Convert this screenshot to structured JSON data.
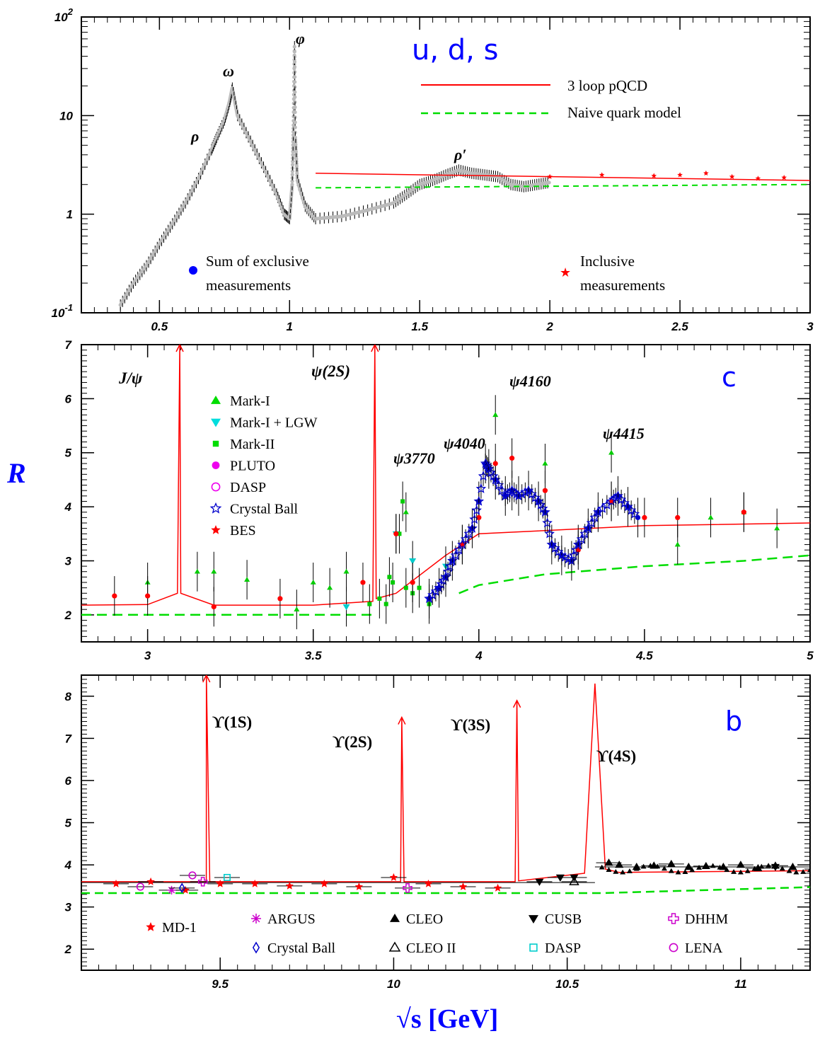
{
  "chart_data": [
    {
      "type": "scatter",
      "panel": "top",
      "yscale": "log",
      "xlim": [
        0.2,
        3.0
      ],
      "ylim": [
        0.1,
        100
      ],
      "xticks": [
        "0.5",
        "1",
        "1.5",
        "2",
        "2.5",
        "3"
      ],
      "yticks": [
        {
          "base": "10",
          "exp": "-1"
        },
        {
          "base": "1",
          "exp": ""
        },
        {
          "base": "10",
          "exp": ""
        },
        {
          "base": "10",
          "exp": "2"
        }
      ],
      "panel_label": "u, d, s",
      "resonances": [
        "ρ",
        "ω",
        "φ",
        "ρ′"
      ],
      "legend": {
        "pqcd": "3 loop pQCD",
        "naive": "Naive quark model",
        "exclusive": [
          "Sum of exclusive",
          "measurements"
        ],
        "inclusive": [
          "Inclusive",
          "measurements"
        ]
      },
      "series": [
        {
          "name": "Sum of exclusive measurements",
          "color": "#bbbbbb",
          "x": [
            0.35,
            0.4,
            0.45,
            0.5,
            0.55,
            0.6,
            0.65,
            0.7,
            0.72,
            0.75,
            0.77,
            0.78,
            0.8,
            0.85,
            0.9,
            0.95,
            0.98,
            1.0,
            1.01,
            1.015,
            1.019,
            1.022,
            1.03,
            1.06,
            1.1,
            1.2,
            1.3,
            1.4,
            1.45,
            1.5,
            1.55,
            1.6,
            1.65,
            1.7,
            1.75,
            1.8,
            1.85,
            1.9,
            1.95,
            2.0
          ],
          "y": [
            0.12,
            0.2,
            0.3,
            0.5,
            0.8,
            1.3,
            2.3,
            4.5,
            6.0,
            9.0,
            14,
            19,
            10,
            5.5,
            3.0,
            1.6,
            1.0,
            0.9,
            2.0,
            8.0,
            50,
            6.0,
            2.2,
            1.2,
            0.9,
            0.95,
            1.1,
            1.3,
            1.6,
            2.0,
            2.2,
            2.5,
            2.8,
            2.6,
            2.5,
            2.4,
            2.0,
            1.9,
            2.0,
            2.1
          ]
        },
        {
          "name": "Inclusive measurements",
          "color": "#ff0000",
          "x": [
            2.0,
            2.2,
            2.4,
            2.5,
            2.6,
            2.7,
            2.8,
            2.9
          ],
          "y": [
            2.4,
            2.5,
            2.45,
            2.5,
            2.6,
            2.4,
            2.3,
            2.35
          ]
        },
        {
          "name": "3 loop pQCD",
          "color": "#ff0000",
          "x": [
            1.1,
            3.0
          ],
          "y": [
            2.6,
            2.2
          ]
        },
        {
          "name": "Naive quark model",
          "color": "#00dd00",
          "x": [
            1.1,
            3.0
          ],
          "y": [
            1.85,
            2.0
          ]
        }
      ]
    },
    {
      "type": "scatter",
      "panel": "middle",
      "xlim": [
        2.8,
        5.0
      ],
      "ylim": [
        1.5,
        7.0
      ],
      "xticks": [
        "3",
        "3.5",
        "4",
        "4.5",
        "5"
      ],
      "yticks": [
        "2",
        "3",
        "4",
        "5",
        "6",
        "7"
      ],
      "ylabel": "R",
      "panel_label": "c",
      "resonances": [
        "J/ψ",
        "ψ(2S)",
        "ψ3770",
        "ψ4040",
        "ψ4160",
        "ψ4415"
      ],
      "legend": [
        "Mark-I",
        "Mark-I + LGW",
        "Mark-II",
        "PLUTO",
        "DASP",
        "Crystal Ball",
        "BES"
      ],
      "series": [
        {
          "name": "Mark-I",
          "color": "#00cc00",
          "x": [
            3.0,
            3.15,
            3.2,
            3.3,
            3.45,
            3.5,
            3.55,
            3.6,
            3.78,
            4.05,
            4.2,
            4.4,
            4.6,
            4.7,
            4.8,
            4.9
          ],
          "y": [
            2.6,
            2.8,
            2.8,
            2.65,
            2.1,
            2.6,
            2.5,
            2.8,
            3.9,
            5.7,
            4.8,
            5.0,
            3.3,
            3.8,
            3.9,
            3.6
          ]
        },
        {
          "name": "Mark-I + LGW",
          "color": "#00cccc",
          "x": [
            3.6,
            3.75,
            3.8,
            3.9
          ],
          "y": [
            2.15,
            3.5,
            3.0,
            2.9
          ]
        },
        {
          "name": "Mark-II",
          "color": "#00cc00",
          "x": [
            3.67,
            3.7,
            3.72,
            3.73,
            3.74,
            3.76,
            3.77,
            3.78,
            3.8,
            3.82,
            3.85
          ],
          "y": [
            2.2,
            2.3,
            2.2,
            2.7,
            2.6,
            3.5,
            4.1,
            2.5,
            2.4,
            2.5,
            2.2
          ]
        },
        {
          "name": "Crystal Ball",
          "color": "#0000cc",
          "x": [
            3.85,
            3.88,
            3.9,
            3.92,
            3.95,
            3.98,
            4.0,
            4.02,
            4.03,
            4.05,
            4.08,
            4.1,
            4.12,
            4.15,
            4.18,
            4.2,
            4.22,
            4.25,
            4.28,
            4.3,
            4.33,
            4.36,
            4.4,
            4.42,
            4.45,
            4.48
          ],
          "y": [
            2.3,
            2.5,
            2.7,
            3.0,
            3.3,
            3.6,
            4.1,
            4.8,
            4.7,
            4.5,
            4.2,
            4.3,
            4.2,
            4.3,
            4.1,
            3.9,
            3.3,
            3.1,
            3.0,
            3.3,
            3.6,
            3.9,
            4.1,
            4.2,
            4.0,
            3.8
          ]
        },
        {
          "name": "BES",
          "color": "#ff0000",
          "x": [
            2.9,
            3.0,
            3.2,
            3.4,
            3.65,
            3.75,
            3.8,
            3.95,
            4.0,
            4.05,
            4.1,
            4.2,
            4.3,
            4.4,
            4.5,
            4.6,
            4.8
          ],
          "y": [
            2.35,
            2.35,
            2.15,
            2.3,
            2.6,
            3.5,
            2.6,
            3.3,
            3.8,
            4.8,
            4.9,
            4.3,
            3.2,
            4.1,
            3.8,
            3.8,
            3.9
          ]
        },
        {
          "name": "3 loop pQCD",
          "color": "#ff0000",
          "x": [
            2.8,
            3.0,
            3.09,
            3.097,
            3.1,
            3.2,
            3.5,
            3.68,
            3.686,
            3.69,
            3.75,
            3.9,
            4.0,
            4.5,
            5.0
          ],
          "y": [
            2.18,
            2.19,
            2.4,
            7.0,
            2.4,
            2.18,
            2.18,
            2.25,
            7.0,
            2.3,
            2.4,
            3.1,
            3.5,
            3.65,
            3.7
          ]
        },
        {
          "name": "Naive quark model",
          "color": "#00dd00",
          "x": [
            2.8,
            3.5,
            3.68,
            3.68,
            3.94,
            4.0,
            4.2,
            4.5,
            4.8,
            5.0
          ],
          "y": [
            2.0,
            2.0,
            2.0,
            null,
            2.4,
            2.55,
            2.75,
            2.9,
            3.0,
            3.1
          ]
        }
      ]
    },
    {
      "type": "scatter",
      "panel": "bottom",
      "xlim": [
        9.1,
        11.2
      ],
      "ylim": [
        1.5,
        8.5
      ],
      "xticks": [
        "9.5",
        "10",
        "10.5",
        "11"
      ],
      "yticks": [
        "2",
        "3",
        "4",
        "5",
        "6",
        "7",
        "8"
      ],
      "xlabel": "√s [GeV]",
      "panel_label": "b",
      "resonances": [
        "ϒ(1S)",
        "ϒ(2S)",
        "ϒ(3S)",
        "ϒ(4S)"
      ],
      "legend": [
        "MD-1",
        "ARGUS",
        "CLEO",
        "CUSB",
        "DHHM",
        "Crystal Ball",
        "CLEO II",
        "DASP",
        "LENA"
      ],
      "series": [
        {
          "name": "MD-1",
          "color": "#ff0000",
          "x": [
            9.2,
            9.3,
            9.4,
            9.5,
            9.6,
            9.7,
            9.8,
            9.9,
            10.0,
            10.1,
            10.2,
            10.3
          ],
          "y": [
            3.55,
            3.6,
            3.4,
            3.55,
            3.55,
            3.5,
            3.55,
            3.48,
            3.7,
            3.55,
            3.48,
            3.45
          ]
        },
        {
          "name": "ARGUS",
          "color": "#cc00cc",
          "x": [
            9.36
          ],
          "y": [
            3.4
          ]
        },
        {
          "name": "CLEO",
          "color": "#000000",
          "x": [
            10.62,
            10.65,
            10.7,
            10.75,
            10.8,
            10.85,
            10.9,
            10.95,
            11.0,
            11.05,
            11.1,
            11.15
          ],
          "y": [
            4.05,
            4.0,
            3.95,
            3.98,
            4.02,
            3.95,
            3.97,
            3.95,
            4.0,
            3.92,
            3.98,
            3.95
          ]
        },
        {
          "name": "CUSB",
          "color": "#000000",
          "x": [
            10.42,
            10.48,
            10.52,
            11.1
          ],
          "y": [
            3.6,
            3.7,
            3.7,
            3.95
          ]
        },
        {
          "name": "DHHM",
          "color": "#cc00cc",
          "x": [
            9.45,
            10.04
          ],
          "y": [
            3.6,
            3.45
          ]
        },
        {
          "name": "Crystal Ball",
          "color": "#0000cc",
          "x": [
            9.39
          ],
          "y": [
            3.45
          ]
        },
        {
          "name": "CLEO II",
          "color": "#000000",
          "x": [
            10.52
          ],
          "y": [
            3.6
          ]
        },
        {
          "name": "DASP",
          "color": "#00cccc",
          "x": [
            9.52
          ],
          "y": [
            3.7
          ]
        },
        {
          "name": "LENA",
          "color": "#cc00cc",
          "x": [
            9.27,
            9.42
          ],
          "y": [
            3.48,
            3.75
          ]
        },
        {
          "name": "3 loop pQCD",
          "color": "#ff0000",
          "x": [
            9.1,
            9.46,
            9.4603,
            9.47,
            10.02,
            10.0233,
            10.03,
            10.35,
            10.3552,
            10.36,
            10.55,
            10.58,
            10.61,
            10.65,
            11.2
          ],
          "y": [
            3.6,
            3.6,
            8.5,
            3.6,
            3.6,
            7.5,
            3.6,
            3.6,
            7.9,
            3.62,
            3.8,
            8.3,
            3.9,
            3.82,
            3.86
          ]
        },
        {
          "name": "Naive quark model",
          "color": "#00dd00",
          "x": [
            9.1,
            10.6,
            11.2
          ],
          "y": [
            3.33,
            3.33,
            3.47
          ]
        }
      ]
    }
  ]
}
